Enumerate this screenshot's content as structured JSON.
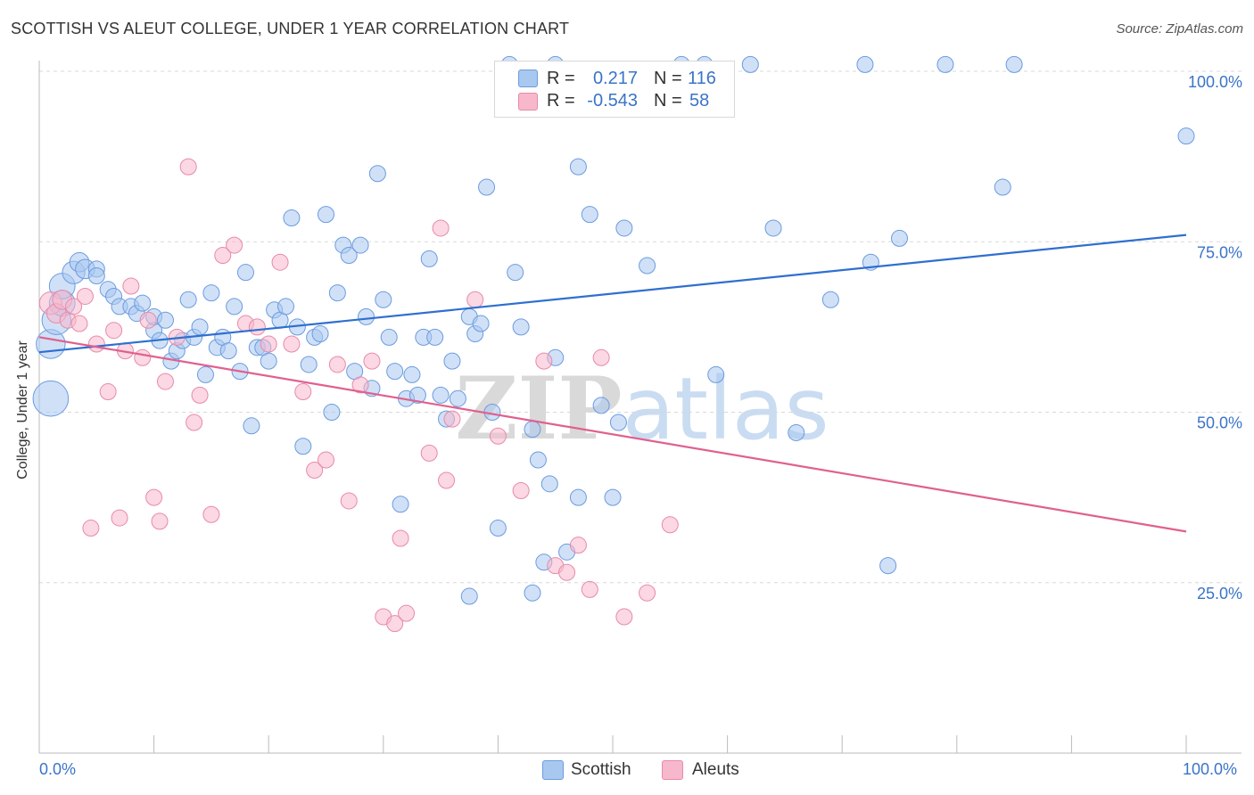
{
  "title": "SCOTTISH VS ALEUT COLLEGE, UNDER 1 YEAR CORRELATION CHART",
  "source": "Source: ZipAtlas.com",
  "watermark": "ZIPatlas",
  "legend_top": {
    "rows": [
      {
        "r_label": "R =",
        "r_value": "0.217",
        "n_label": "N =",
        "n_value": "116"
      },
      {
        "r_label": "R =",
        "r_value": "-0.543",
        "n_label": "N =",
        "n_value": "58"
      }
    ]
  },
  "legend_bottom": [
    "Scottish",
    "Aleuts"
  ],
  "x_axis_labels": {
    "left": "0.0%",
    "right": "100.0%"
  },
  "colors": {
    "scottish_fill": "#a9c8f0",
    "scottish_stroke": "#6b9be0",
    "scottish_line": "#2f6fd0",
    "aleuts_fill": "#f7b8cc",
    "aleuts_stroke": "#e88aa8",
    "aleuts_line": "#e0608e",
    "axis_text": "#3a74c8",
    "grid": "#d8d8d8"
  },
  "chart_data": {
    "type": "scatter",
    "title": "SCOTTISH VS ALEUT COLLEGE, UNDER 1 YEAR CORRELATION CHART",
    "xlabel": "",
    "ylabel": "College, Under 1 year",
    "xlim": [
      0,
      100
    ],
    "ylim": [
      0,
      100
    ],
    "y_ticks": [
      {
        "value": 25,
        "label": "25.0%"
      },
      {
        "value": 50,
        "label": "50.0%"
      },
      {
        "value": 75,
        "label": "75.0%"
      },
      {
        "value": 100,
        "label": "100.0%"
      }
    ],
    "grid": "horizontal dashed",
    "series": [
      {
        "name": "Scottish",
        "r": 0.217,
        "n": 116,
        "trend": [
          [
            0,
            58.8
          ],
          [
            100,
            76.0
          ]
        ],
        "points": [
          [
            1,
            52,
            22
          ],
          [
            1,
            60,
            18
          ],
          [
            1.5,
            63.5,
            18
          ],
          [
            2,
            66,
            16
          ],
          [
            2,
            68.5,
            16
          ],
          [
            3,
            70.5,
            14
          ],
          [
            3.5,
            72,
            12
          ],
          [
            4,
            71,
            12
          ],
          [
            5,
            71,
            10
          ],
          [
            5,
            70,
            10
          ],
          [
            6,
            68,
            10
          ],
          [
            6.5,
            67,
            10
          ],
          [
            7,
            65.5,
            10
          ],
          [
            8,
            65.5,
            10
          ],
          [
            8.5,
            64.5,
            10
          ],
          [
            9,
            66,
            10
          ],
          [
            10,
            62,
            10
          ],
          [
            10,
            64,
            10
          ],
          [
            10.5,
            60.5,
            10
          ],
          [
            11,
            63.5,
            10
          ],
          [
            11.5,
            57.5,
            10
          ],
          [
            12,
            59,
            10
          ],
          [
            12.5,
            60.5,
            10
          ],
          [
            13,
            66.5,
            10
          ],
          [
            13.5,
            61,
            10
          ],
          [
            14,
            62.5,
            10
          ],
          [
            14.5,
            55.5,
            10
          ],
          [
            15,
            67.5,
            10
          ],
          [
            15.5,
            59.5,
            10
          ],
          [
            16,
            61,
            10
          ],
          [
            16.5,
            59,
            10
          ],
          [
            17,
            65.5,
            10
          ],
          [
            17.5,
            56,
            10
          ],
          [
            18,
            70.5,
            10
          ],
          [
            18.5,
            48,
            10
          ],
          [
            19,
            59.5,
            10
          ],
          [
            19.5,
            59.5,
            10
          ],
          [
            20,
            57.5,
            10
          ],
          [
            20.5,
            65,
            10
          ],
          [
            21,
            63.5,
            10
          ],
          [
            21.5,
            65.5,
            10
          ],
          [
            22,
            78.5,
            10
          ],
          [
            22.5,
            62.5,
            10
          ],
          [
            23,
            45,
            10
          ],
          [
            23.5,
            57,
            10
          ],
          [
            24,
            61,
            10
          ],
          [
            24.5,
            61.5,
            10
          ],
          [
            25,
            79,
            10
          ],
          [
            25.5,
            50,
            10
          ],
          [
            26,
            67.5,
            10
          ],
          [
            26.5,
            74.5,
            10
          ],
          [
            27,
            73,
            10
          ],
          [
            27.5,
            56,
            10
          ],
          [
            28,
            74.5,
            10
          ],
          [
            28.5,
            64,
            10
          ],
          [
            29,
            53.5,
            10
          ],
          [
            29.5,
            85,
            10
          ],
          [
            30,
            66.5,
            10
          ],
          [
            30.5,
            61,
            10
          ],
          [
            31,
            56,
            10
          ],
          [
            31.5,
            36.5,
            10
          ],
          [
            32,
            52,
            10
          ],
          [
            32.5,
            55.5,
            10
          ],
          [
            33,
            52.5,
            10
          ],
          [
            33.5,
            61,
            10
          ],
          [
            34,
            72.5,
            10
          ],
          [
            34.5,
            61,
            10
          ],
          [
            35,
            52.5,
            10
          ],
          [
            35.5,
            49,
            10
          ],
          [
            36,
            57.5,
            10
          ],
          [
            36.5,
            52,
            10
          ],
          [
            37.5,
            64,
            10
          ],
          [
            38,
            61.5,
            10
          ],
          [
            38.5,
            63,
            10
          ],
          [
            39,
            83,
            10
          ],
          [
            39.5,
            50,
            10
          ],
          [
            40,
            33,
            10
          ],
          [
            41,
            101,
            10
          ],
          [
            41.5,
            70.5,
            10
          ],
          [
            42,
            62.5,
            10
          ],
          [
            43,
            47.5,
            10
          ],
          [
            43.5,
            43,
            10
          ],
          [
            44,
            28,
            10
          ],
          [
            45,
            101,
            10
          ],
          [
            45,
            58,
            10
          ],
          [
            46,
            29.5,
            10
          ],
          [
            47,
            37.5,
            10
          ],
          [
            47,
            86,
            10
          ],
          [
            48,
            79,
            10
          ],
          [
            49,
            51,
            10
          ],
          [
            50,
            37.5,
            10
          ],
          [
            50.5,
            48.5,
            10
          ],
          [
            51,
            77,
            10
          ],
          [
            53,
            71.5,
            10
          ],
          [
            56,
            101,
            10
          ],
          [
            58,
            101,
            10
          ],
          [
            59,
            55.5,
            10
          ],
          [
            62,
            101,
            10
          ],
          [
            64,
            77,
            10
          ],
          [
            66,
            47,
            10
          ],
          [
            69,
            66.5,
            10
          ],
          [
            72,
            101,
            10
          ],
          [
            72.5,
            72,
            10
          ],
          [
            74,
            27.5,
            10
          ],
          [
            75,
            75.5,
            10
          ],
          [
            79,
            101,
            10
          ],
          [
            84,
            83,
            10
          ],
          [
            85,
            101,
            10
          ],
          [
            100,
            90.5,
            10
          ],
          [
            37.5,
            23,
            10
          ],
          [
            43,
            23.5,
            10
          ],
          [
            44.5,
            39.5,
            10
          ]
        ]
      },
      {
        "name": "Aleuts",
        "r": -0.543,
        "n": 58,
        "trend": [
          [
            0,
            61.0
          ],
          [
            100,
            32.5
          ]
        ],
        "points": [
          [
            1,
            66,
            14
          ],
          [
            1.5,
            64.5,
            12
          ],
          [
            2,
            66.5,
            12
          ],
          [
            2.5,
            63.5,
            10
          ],
          [
            3,
            65.5,
            10
          ],
          [
            3.5,
            63,
            10
          ],
          [
            4,
            67,
            10
          ],
          [
            4.5,
            33,
            10
          ],
          [
            5,
            60,
            10
          ],
          [
            6,
            53,
            10
          ],
          [
            6.5,
            62,
            10
          ],
          [
            7,
            34.5,
            10
          ],
          [
            7.5,
            59,
            10
          ],
          [
            8,
            68.5,
            10
          ],
          [
            9,
            58,
            10
          ],
          [
            9.5,
            63.5,
            10
          ],
          [
            10,
            37.5,
            10
          ],
          [
            10.5,
            34,
            10
          ],
          [
            11,
            54.5,
            10
          ],
          [
            12,
            61,
            10
          ],
          [
            13,
            86,
            10
          ],
          [
            13.5,
            48.5,
            10
          ],
          [
            14,
            52.5,
            10
          ],
          [
            15,
            35,
            10
          ],
          [
            16,
            73,
            10
          ],
          [
            17,
            74.5,
            10
          ],
          [
            18,
            63,
            10
          ],
          [
            19,
            62.5,
            10
          ],
          [
            20,
            60,
            10
          ],
          [
            21,
            72,
            10
          ],
          [
            22,
            60,
            10
          ],
          [
            23,
            53,
            10
          ],
          [
            24,
            41.5,
            10
          ],
          [
            25,
            43,
            10
          ],
          [
            26,
            57,
            10
          ],
          [
            27,
            37,
            10
          ],
          [
            28,
            54,
            10
          ],
          [
            29,
            57.5,
            10
          ],
          [
            30,
            20,
            10
          ],
          [
            31,
            19,
            10
          ],
          [
            31.5,
            31.5,
            10
          ],
          [
            32,
            20.5,
            10
          ],
          [
            34,
            44,
            10
          ],
          [
            35,
            77,
            10
          ],
          [
            35.5,
            40,
            10
          ],
          [
            36,
            49,
            10
          ],
          [
            38,
            66.5,
            10
          ],
          [
            40,
            46.5,
            10
          ],
          [
            42,
            38.5,
            10
          ],
          [
            44,
            57.5,
            10
          ],
          [
            45,
            27.5,
            10
          ],
          [
            46,
            26.5,
            10
          ],
          [
            47,
            30.5,
            10
          ],
          [
            48,
            24,
            10
          ],
          [
            49,
            58,
            10
          ],
          [
            51,
            20,
            10
          ],
          [
            53,
            23.5,
            10
          ],
          [
            55,
            33.5,
            10
          ]
        ]
      }
    ]
  }
}
